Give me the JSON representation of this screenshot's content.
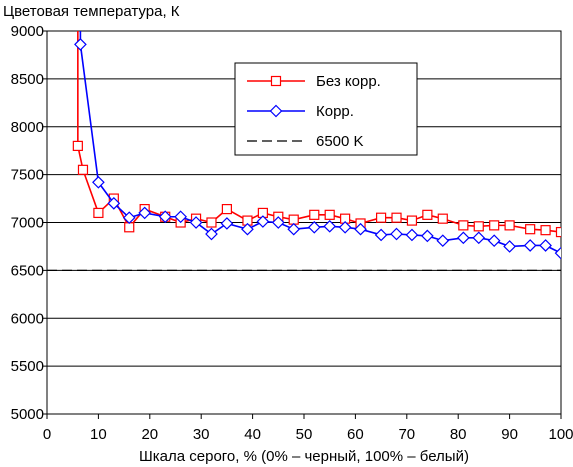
{
  "chart_data": {
    "type": "line",
    "ylabel": "Цветовая температура, К",
    "xlabel": "Шкала серого, % (0% – черный, 100% – белый)",
    "xlim": [
      0,
      100
    ],
    "ylim": [
      5000,
      9000
    ],
    "x_ticks": [
      0,
      10,
      20,
      30,
      40,
      50,
      60,
      70,
      80,
      90,
      100
    ],
    "x_tick_labels": [
      "0",
      "10",
      "20",
      "30",
      "40",
      "50",
      "60",
      "70",
      "80",
      "90",
      "100"
    ],
    "y_ticks": [
      5000,
      5500,
      6000,
      6500,
      7000,
      7500,
      8000,
      8500,
      9000
    ],
    "y_tick_labels": [
      "5000",
      "5500",
      "6000",
      "6500",
      "7000",
      "7500",
      "8000",
      "8500",
      "9000"
    ],
    "grid": "horizontal",
    "legend_position": "top-right",
    "series": [
      {
        "name": "Без корр.",
        "color": "#ff0000",
        "marker": "square",
        "x": [
          6,
          6,
          7,
          10,
          13,
          16,
          19,
          23,
          26,
          29,
          32,
          35,
          39,
          42,
          45,
          48,
          52,
          55,
          58,
          61,
          65,
          68,
          71,
          74,
          77,
          81,
          84,
          87,
          90,
          94,
          97,
          100
        ],
        "y": [
          12000,
          7800,
          7550,
          7100,
          7250,
          6950,
          7140,
          7060,
          7000,
          7040,
          7000,
          7140,
          7020,
          7100,
          7060,
          7030,
          7080,
          7080,
          7040,
          6990,
          7050,
          7050,
          7020,
          7080,
          7040,
          6970,
          6960,
          6970,
          6970,
          6930,
          6920,
          6900
        ]
      },
      {
        "name": "Корр.",
        "color": "#0000ff",
        "marker": "diamond",
        "x": [
          6.5,
          6.5,
          10,
          13,
          16,
          19,
          23,
          26,
          29,
          32,
          35,
          39,
          42,
          45,
          48,
          52,
          55,
          58,
          61,
          65,
          68,
          71,
          74,
          77,
          81,
          84,
          87,
          90,
          94,
          97,
          100
        ],
        "y": [
          12000,
          8860,
          7420,
          7200,
          7050,
          7100,
          7060,
          7060,
          7000,
          6880,
          6990,
          6930,
          7010,
          7000,
          6930,
          6950,
          6960,
          6950,
          6930,
          6870,
          6880,
          6870,
          6860,
          6810,
          6840,
          6840,
          6810,
          6750,
          6760,
          6760,
          6680
        ]
      },
      {
        "name": "6500 K",
        "color": "#000000",
        "marker": "none",
        "dash": "dashed",
        "x": [
          0,
          100
        ],
        "y": [
          6500,
          6500
        ]
      }
    ]
  }
}
